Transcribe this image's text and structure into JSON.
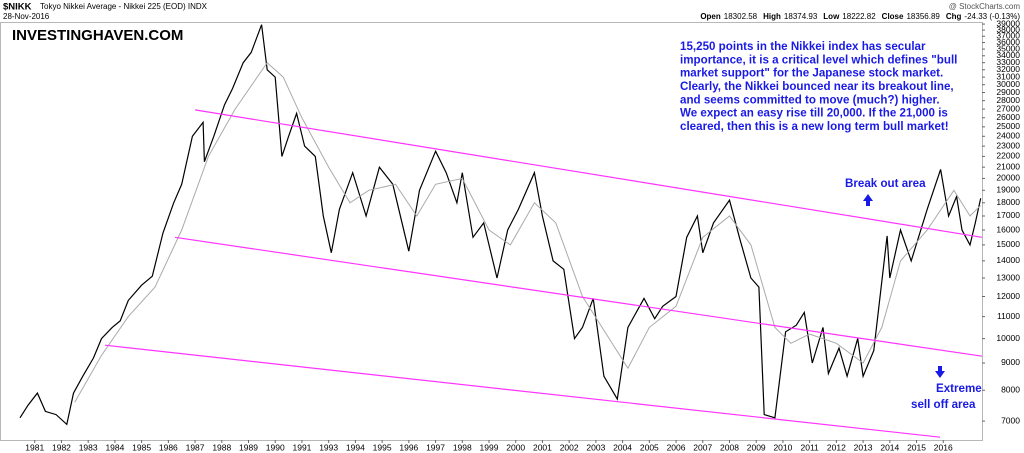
{
  "chart_data": {
    "type": "line",
    "symbol": "$NIKK",
    "title": "Tokyo Nikkei Average - Nikkei 225 (EOD) INDX",
    "date": "28-Nov-2016",
    "source": "@ StockCharts.com",
    "quote": [
      {
        "label": "Open",
        "value": "18302.58"
      },
      {
        "label": "High",
        "value": "18374.93"
      },
      {
        "label": "Low",
        "value": "18222.82"
      },
      {
        "label": "Close",
        "value": "18356.89"
      },
      {
        "label": "Chg",
        "value": "-24.33 (-0.13%)"
      }
    ],
    "watermark": "INVESTINGHAVEN.COM",
    "commentary": [
      "15,250 points in the Nikkei index has secular",
      "importance, it is a critical level which defines \"bull",
      "market support\" for the Japanese stock market.",
      "Clearly, the Nikkei bounced near its breakout line,",
      "and seems committed to move (much?) higher.",
      "We expect an easy rise till 20,000. If the 21,000 is",
      "cleared, then this is a new long term bull market!"
    ],
    "annotations": {
      "breakout": "Break out area",
      "selloff": [
        "Extreme",
        "sell off area"
      ]
    },
    "log_scale": true,
    "grid": false,
    "xlim": [
      1980.2,
      2016.95
    ],
    "ylim": [
      6450,
      39350
    ],
    "xticks": [
      {
        "value": 1981.5,
        "label": "1981"
      },
      {
        "value": 1982.5,
        "label": "1982"
      },
      {
        "value": 1983.5,
        "label": "1983"
      },
      {
        "value": 1984.5,
        "label": "1984"
      },
      {
        "value": 1985.5,
        "label": "1985"
      },
      {
        "value": 1986.5,
        "label": "1986"
      },
      {
        "value": 1987.5,
        "label": "1987"
      },
      {
        "value": 1988.5,
        "label": "1988"
      },
      {
        "value": 1989.5,
        "label": "1989"
      },
      {
        "value": 1990.5,
        "label": "1990"
      },
      {
        "value": 1991.5,
        "label": "1991"
      },
      {
        "value": 1992.5,
        "label": "1993"
      },
      {
        "value": 1993.5,
        "label": "1994"
      },
      {
        "value": 1994.5,
        "label": "1995"
      },
      {
        "value": 1995.5,
        "label": "1996"
      },
      {
        "value": 1996.5,
        "label": "1997"
      },
      {
        "value": 1997.5,
        "label": "1998"
      },
      {
        "value": 1998.5,
        "label": "1999"
      },
      {
        "value": 1999.5,
        "label": "2000"
      },
      {
        "value": 2000.5,
        "label": "2001"
      },
      {
        "value": 2001.5,
        "label": "2002"
      },
      {
        "value": 2002.5,
        "label": "2003"
      },
      {
        "value": 2003.5,
        "label": "2004"
      },
      {
        "value": 2004.5,
        "label": "2005"
      },
      {
        "value": 2005.5,
        "label": "2006"
      },
      {
        "value": 2006.5,
        "label": "2007"
      },
      {
        "value": 2007.5,
        "label": "2008"
      },
      {
        "value": 2008.5,
        "label": "2009"
      },
      {
        "value": 2009.5,
        "label": "2010"
      },
      {
        "value": 2010.5,
        "label": "2011"
      },
      {
        "value": 2011.5,
        "label": "2012"
      },
      {
        "value": 2012.5,
        "label": "2013"
      },
      {
        "value": 2013.5,
        "label": "2014"
      },
      {
        "value": 2014.5,
        "label": "2015"
      },
      {
        "value": 2015.5,
        "label": "2016"
      }
    ],
    "yticks": [
      7000,
      8000,
      9000,
      10000,
      11000,
      12000,
      13000,
      14000,
      15000,
      16000,
      17000,
      18000,
      19000,
      20000,
      21000,
      22000,
      23000,
      24000,
      25000,
      26000,
      27000,
      28000,
      29000,
      30000,
      31000,
      32000,
      33000,
      34000,
      35000,
      36000,
      37000,
      38000,
      39000
    ],
    "series": [
      {
        "color": "#000000",
        "x": [
          1980.95,
          1981.25,
          1981.6,
          1981.9,
          1982.3,
          1982.7,
          1982.95,
          1983.3,
          1983.7,
          1984.0,
          1984.4,
          1984.7,
          1985.0,
          1985.5,
          1985.9,
          1986.3,
          1986.7,
          1987.0,
          1987.4,
          1987.8,
          1987.85,
          1988.2,
          1988.6,
          1988.9,
          1989.3,
          1989.6,
          1989.99,
          1990.2,
          1990.5,
          1990.75,
          1991.0,
          1991.3,
          1991.6,
          1992.0,
          1992.3,
          1992.6,
          1992.9,
          1993.4,
          1993.9,
          1994.4,
          1994.9,
          1995.5,
          1995.9,
          1996.5,
          1996.9,
          1997.3,
          1997.5,
          1997.9,
          1998.3,
          1998.8,
          1999.2,
          1999.6,
          2000.2,
          2000.5,
          2000.9,
          2001.3,
          2001.7,
          2002.0,
          2002.4,
          2002.8,
          2003.3,
          2003.7,
          2004.3,
          2004.7,
          2005.0,
          2005.5,
          2005.9,
          2006.3,
          2006.5,
          2006.9,
          2007.5,
          2007.9,
          2008.3,
          2008.6,
          2008.8,
          2009.2,
          2009.6,
          2010.0,
          2010.3,
          2010.6,
          2011.0,
          2011.2,
          2011.6,
          2011.9,
          2012.3,
          2012.5,
          2012.9,
          2013.4,
          2013.5,
          2013.9,
          2014.3,
          2014.9,
          2015.4,
          2015.7,
          2016.0,
          2016.2,
          2016.5,
          2016.7,
          2016.9
        ],
        "values": [
          7100,
          7500,
          7900,
          7300,
          7200,
          6900,
          7900,
          8500,
          9200,
          10000,
          10500,
          10800,
          11800,
          12600,
          13100,
          15800,
          18000,
          19500,
          24000,
          25500,
          21500,
          24000,
          27500,
          29500,
          33000,
          34500,
          38900,
          32000,
          31000,
          22000,
          24000,
          26500,
          23000,
          22000,
          17000,
          14500,
          17500,
          20500,
          17000,
          21000,
          19500,
          14600,
          19000,
          22500,
          20500,
          18000,
          20500,
          15500,
          16500,
          13000,
          16000,
          17500,
          20500,
          17000,
          14000,
          13500,
          10000,
          10500,
          11900,
          8500,
          7700,
          10500,
          11900,
          10900,
          11500,
          12000,
          15500,
          17000,
          14500,
          16500,
          18200,
          15300,
          13000,
          12500,
          7200,
          7100,
          10300,
          10600,
          11200,
          9000,
          10500,
          8600,
          9600,
          8500,
          10000,
          8500,
          9500,
          15600,
          13000,
          16000,
          14000,
          17500,
          20800,
          17000,
          18500,
          16000,
          15000,
          16500,
          18357
        ]
      },
      {
        "color": "#aaaaaa",
        "x": [
          1983.0,
          1984.0,
          1985.0,
          1986.0,
          1987.0,
          1988.0,
          1989.0,
          1990.2,
          1990.8,
          1991.5,
          1992.5,
          1993.3,
          1994.0,
          1995.0,
          1995.8,
          1996.5,
          1997.5,
          1998.5,
          1999.3,
          2000.2,
          2001.0,
          2002.0,
          2003.0,
          2003.7,
          2004.5,
          2005.5,
          2006.5,
          2007.5,
          2008.3,
          2009.2,
          2009.8,
          2010.5,
          2011.5,
          2012.5,
          2013.2,
          2013.9,
          2014.9,
          2015.9,
          2016.5,
          2016.9
        ],
        "values": [
          7600,
          9300,
          11000,
          12500,
          16000,
          22000,
          27000,
          33000,
          31000,
          26000,
          21000,
          18000,
          19000,
          19500,
          17000,
          19500,
          20000,
          16000,
          15000,
          18000,
          16500,
          12000,
          10000,
          8800,
          10500,
          11500,
          15500,
          17000,
          15000,
          10500,
          9800,
          10200,
          9800,
          9000,
          10500,
          14000,
          16000,
          19000,
          17000,
          17800
        ]
      }
    ],
    "trendlines": [
      {
        "color": "#ff33ff",
        "x": [
          1987.5,
          2016.95
        ],
        "values": [
          26900,
          15500
        ]
      },
      {
        "color": "#ff33ff",
        "x": [
          1986.75,
          2016.95
        ],
        "values": [
          15500,
          9270
        ]
      },
      {
        "color": "#ff33ff",
        "x": [
          1984.13,
          2015.38
        ],
        "values": [
          9720,
          6530
        ]
      }
    ]
  }
}
